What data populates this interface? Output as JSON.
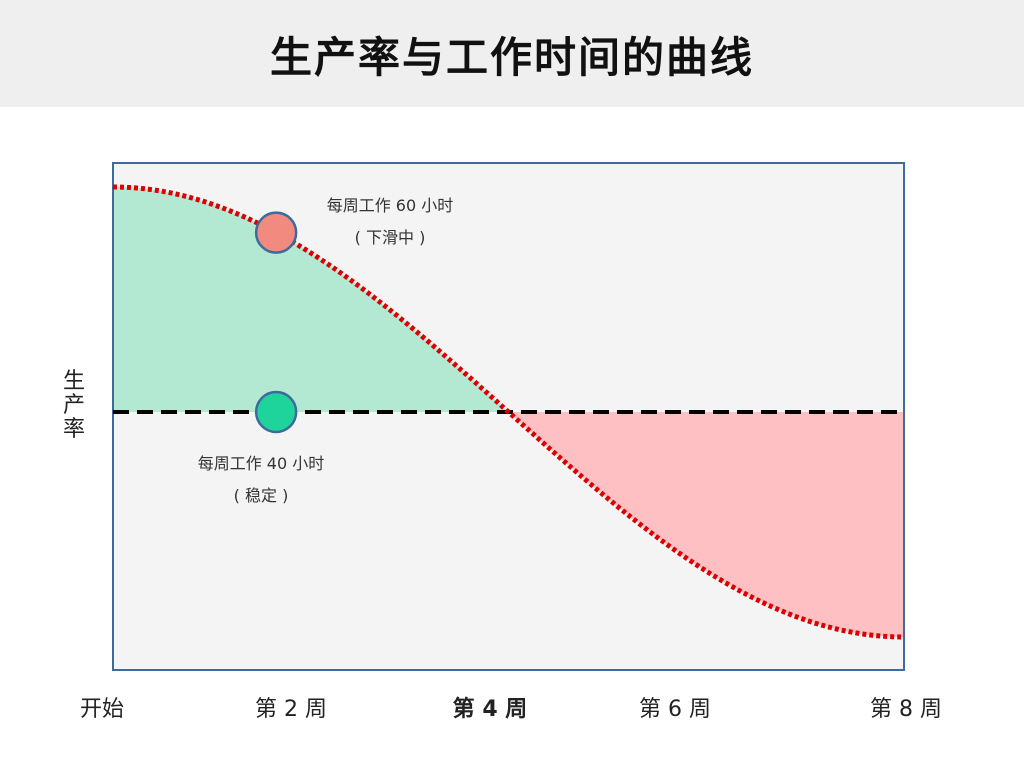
{
  "title": "生产率与工作时间的曲线",
  "chart_data": {
    "type": "area",
    "title": "生产率与工作时间的曲线",
    "ylabel": "生产率",
    "xlabel": "",
    "x_tick_labels": [
      {
        "x": 0,
        "label": "开始",
        "bold": false
      },
      {
        "x": 2,
        "label": "第 2 周",
        "bold": false
      },
      {
        "x": 4,
        "label": "第 4 周",
        "bold": true
      },
      {
        "x": 6,
        "label": "第 6 周",
        "bold": false
      },
      {
        "x": 8,
        "label": "第 8 周",
        "bold": false
      }
    ],
    "xlim": [
      0,
      8
    ],
    "ylim": [
      -1.1,
      1.0
    ],
    "series": [
      {
        "name": "每周工作 60 小时",
        "style": "dotted",
        "color": "#dd0000",
        "x": [
          0,
          1,
          2,
          3,
          4,
          5,
          6,
          7,
          8
        ],
        "y": [
          0.93,
          0.84,
          0.61,
          0.31,
          0.0,
          -0.31,
          -0.61,
          -0.84,
          -0.93
        ]
      },
      {
        "name": "每周工作 40 小时",
        "style": "dashed",
        "color": "#000000",
        "x": [
          0,
          8
        ],
        "y": [
          0,
          0
        ]
      }
    ],
    "fills": [
      {
        "region": "gain",
        "x_range": [
          0,
          4
        ],
        "color": "#b3e8d3"
      },
      {
        "region": "loss",
        "x_range": [
          4,
          8
        ],
        "color": "#ffc0c3"
      }
    ],
    "markers": [
      {
        "series": "每周工作 60 小时",
        "x": 1.65,
        "color": "#f28a80"
      },
      {
        "series": "每周工作 40 小时",
        "x": 1.65,
        "color": "#1fd49a"
      }
    ],
    "annotations": [
      {
        "id": "over",
        "line1": "每周工作 60 小时",
        "line2": "( 下滑中 )"
      },
      {
        "id": "steady",
        "line1": "每周工作 40 小时",
        "line2": "( 稳定 )"
      }
    ],
    "grid": false,
    "legend": "none",
    "plot_background": "#f4f4f5",
    "frame_color": "#3e6a9c"
  }
}
